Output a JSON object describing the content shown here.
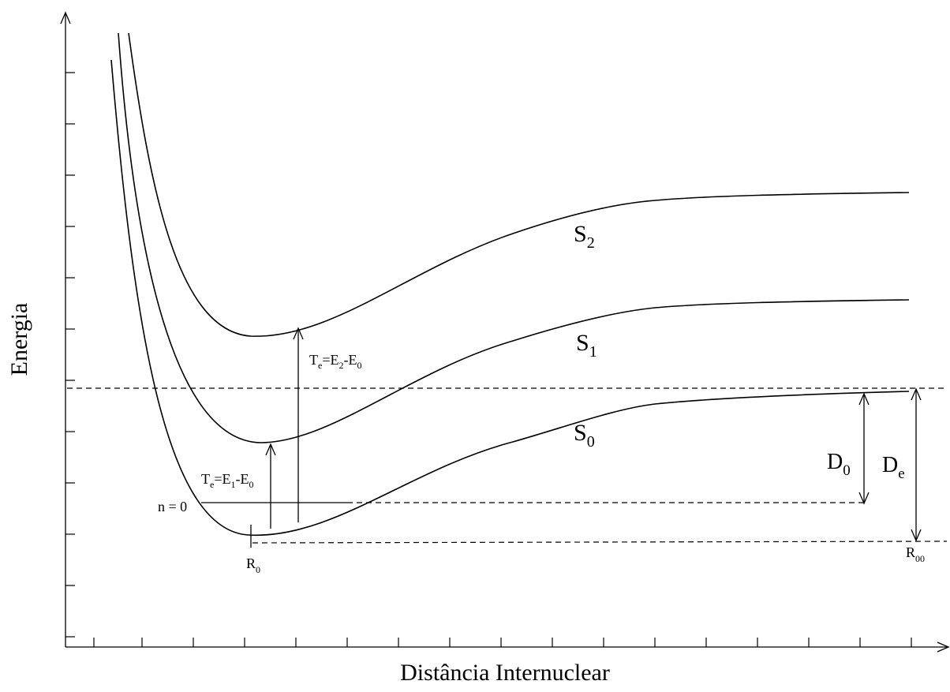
{
  "axes": {
    "xlabel": "Distância Internuclear",
    "ylabel": "Energia"
  },
  "curves": {
    "s0": {
      "label": "S",
      "sub": "0"
    },
    "s1": {
      "label": "S",
      "sub": "1"
    },
    "s2": {
      "label": "S",
      "sub": "2"
    }
  },
  "annotations": {
    "te1": {
      "p1": "T",
      "s1": "e",
      "p2": "=E",
      "s2": "1",
      "p3": "-E",
      "s3": "0"
    },
    "te2": {
      "p1": "T",
      "s1": "e",
      "p2": "=E",
      "s2": "2",
      "p3": "-E",
      "s3": "0"
    },
    "n0": "n = 0",
    "r0": {
      "label": "R",
      "sub": "0"
    },
    "r00": {
      "label": "R",
      "sub": "00"
    },
    "d0": {
      "label": "D",
      "sub": "0"
    },
    "de": {
      "label": "D",
      "sub": "e"
    }
  }
}
